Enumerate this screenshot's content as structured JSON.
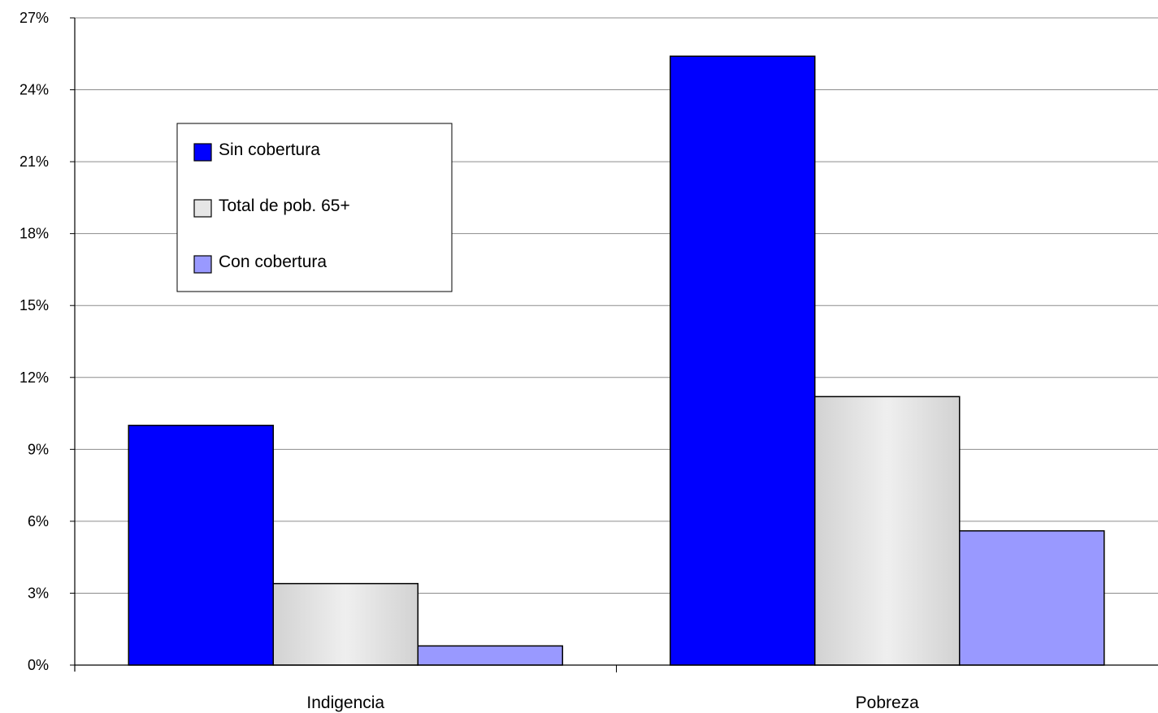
{
  "chart_data": {
    "type": "bar",
    "categories": [
      "Indigencia",
      "Pobreza"
    ],
    "series": [
      {
        "name": "Sin cobertura",
        "values": [
          10.0,
          25.4
        ],
        "color": "#0000ff"
      },
      {
        "name": "Total de pob. 65+",
        "values": [
          3.4,
          11.2
        ],
        "color": "#e6e6e6"
      },
      {
        "name": "Con cobertura",
        "values": [
          0.8,
          5.6
        ],
        "color": "#9999ff"
      }
    ],
    "ylim": [
      0,
      27
    ],
    "y_ticks": [
      0,
      3,
      6,
      9,
      12,
      15,
      18,
      21,
      24,
      27
    ],
    "y_tick_labels": [
      "0%",
      "3%",
      "6%",
      "9%",
      "12%",
      "15%",
      "18%",
      "21%",
      "24%",
      "27%"
    ],
    "grid": true,
    "legend_position": "top-left",
    "title": "",
    "xlabel": "",
    "ylabel": ""
  }
}
